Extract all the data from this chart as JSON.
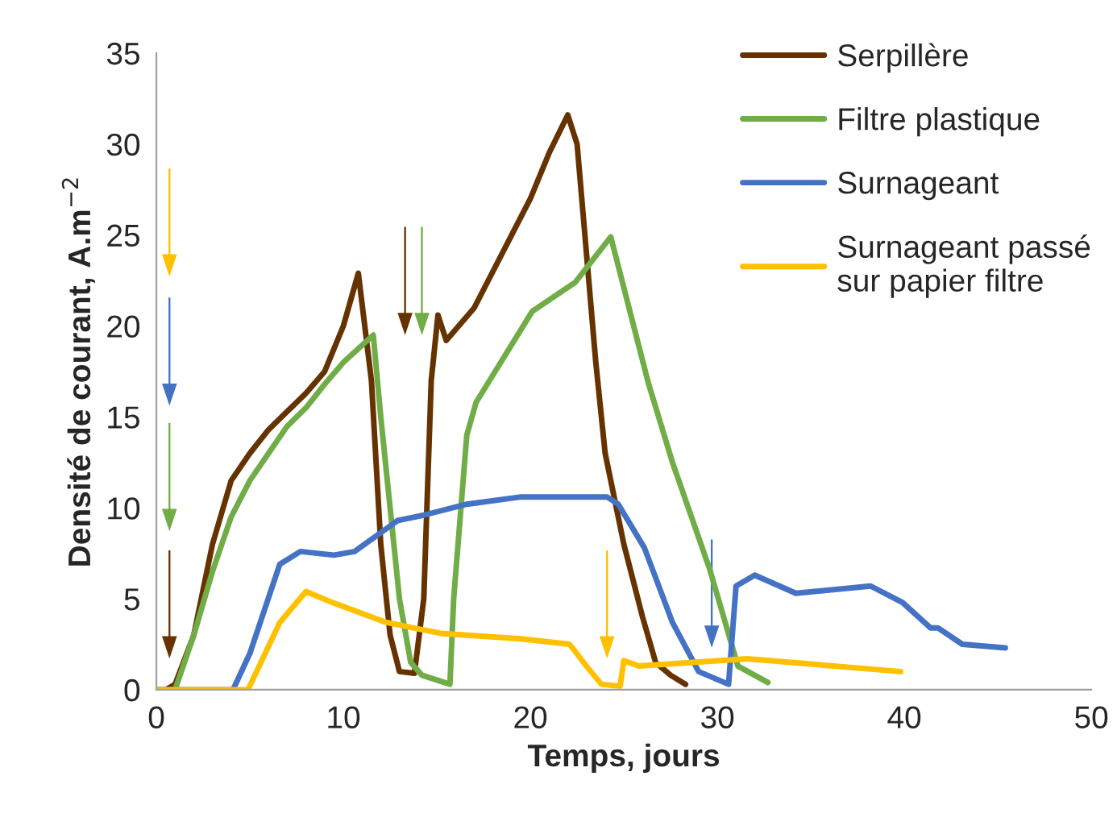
{
  "chart_data": {
    "type": "line",
    "xlabel": "Temps, jours",
    "ylabel": "Densité de courant, A.m$^{−2}$",
    "xlim": [
      0,
      50
    ],
    "xticks": [
      0,
      10,
      20,
      30,
      40,
      50
    ],
    "ylim": [
      0,
      35
    ],
    "yticks": [
      0,
      5,
      10,
      15,
      20,
      25,
      30,
      35
    ],
    "grid": false,
    "legend": "top right",
    "marker": "none",
    "line_style": "solid",
    "series": [
      {
        "name": "Serpillère",
        "color": "#663300",
        "x": [
          0.5,
          1,
          2,
          3,
          4,
          5,
          6,
          7,
          8,
          9,
          10,
          10.8,
          11.5,
          12,
          12.5,
          13,
          13.8,
          14.3,
          14.7,
          15.06,
          15.5,
          17,
          18,
          19,
          20,
          21,
          22,
          22.5,
          23,
          23.5,
          24,
          25,
          26,
          26.7,
          27.5,
          28.3
        ],
        "values": [
          0,
          0.3,
          3,
          8,
          11.5,
          13,
          14.3,
          15.3,
          16.3,
          17.5,
          20,
          22.9,
          17,
          8,
          3,
          1,
          0.9,
          5,
          17,
          20.6,
          19.2,
          21,
          23,
          25,
          27,
          29.5,
          31.6,
          30,
          24,
          18,
          13,
          8,
          4,
          1.5,
          0.8,
          0.3
        ]
      },
      {
        "name": "Filtre plastique",
        "color": "#70ad47",
        "x": [
          0,
          1,
          2,
          3,
          4,
          5,
          6,
          7,
          8,
          9,
          10,
          11.6,
          12,
          12.5,
          13,
          13.6,
          14.2,
          15.7,
          15.9,
          16.6,
          17.1,
          20.1,
          22.4,
          24.3,
          26.3,
          27.6,
          29.6,
          31.1,
          32.7
        ],
        "values": [
          0,
          0,
          3,
          6.5,
          9.5,
          11.5,
          13,
          14.5,
          15.5,
          16.8,
          18,
          19.5,
          15,
          10,
          5,
          1.5,
          0.8,
          0.3,
          5,
          14,
          15.8,
          20.8,
          22.4,
          24.9,
          16.9,
          12.5,
          6.6,
          1.3,
          0.4
        ]
      },
      {
        "name": "Surnageant",
        "color": "#4472c4",
        "x": [
          0,
          4.1,
          5,
          6.6,
          7.7,
          9.5,
          10.6,
          12.9,
          14.3,
          16.6,
          19.5,
          24.1,
          24.7,
          26.1,
          27.6,
          29.0,
          30.6,
          31.0,
          32.0,
          34.2,
          38.2,
          39.9,
          41.4,
          41.8,
          43.1,
          45.4
        ],
        "values": [
          0,
          0,
          2,
          6.9,
          7.6,
          7.4,
          7.6,
          9.3,
          9.6,
          10.2,
          10.6,
          10.6,
          10.2,
          7.8,
          3.7,
          1.0,
          0.3,
          5.7,
          6.3,
          5.3,
          5.7,
          4.8,
          3.4,
          3.4,
          2.5,
          2.3
        ]
      },
      {
        "name": "Surnageant passé\nsur papier filtre",
        "color": "#ffc000",
        "x": [
          0,
          4.9,
          6.6,
          8.0,
          9.4,
          12.3,
          15.2,
          19.5,
          22.1,
          23.0,
          23.8,
          24.8,
          25.0,
          25.8,
          31.6,
          39.8
        ],
        "values": [
          0,
          0,
          3.7,
          5.4,
          4.8,
          3.7,
          3.1,
          2.8,
          2.5,
          1.3,
          0.3,
          0.2,
          1.6,
          1.3,
          1.7,
          1.0
        ]
      }
    ]
  }
}
